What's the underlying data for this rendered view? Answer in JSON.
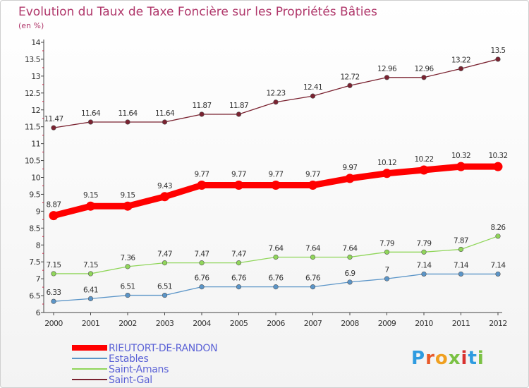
{
  "chart_data": {
    "type": "line",
    "title": "Evolution du Taux de Taxe Foncière sur les Propriétés Bâties",
    "subtitle": "(en %)",
    "xlabel": "",
    "ylabel": "",
    "x": [
      "2000",
      "2001",
      "2002",
      "2003",
      "2004",
      "2005",
      "2006",
      "2007",
      "2008",
      "2009",
      "2010",
      "2011",
      "2012"
    ],
    "ylim": [
      6,
      14
    ],
    "yticks": [
      "6",
      "6.5",
      "7",
      "7.5",
      "8",
      "8.5",
      "9",
      "9.5",
      "10",
      "10.5",
      "11",
      "11.5",
      "12",
      "12.5",
      "13",
      "13.5",
      "14"
    ],
    "grid": false,
    "legend_position": "bottom-left",
    "series": [
      {
        "name": "RIEUTORT-DE-RANDON",
        "color": "#ff0000",
        "emphasis": "bold",
        "values": [
          8.87,
          9.15,
          9.15,
          9.43,
          9.77,
          9.77,
          9.77,
          9.77,
          9.97,
          10.12,
          10.22,
          10.32,
          10.32
        ],
        "labels": [
          "8.87",
          "9.15",
          "9.15",
          "9.43",
          "9.77",
          "9.77",
          "9.77",
          "9.77",
          "9.97",
          "10.12",
          "10.22",
          "10.32",
          "10.32"
        ]
      },
      {
        "name": "Estables",
        "color": "#5b95c8",
        "emphasis": "normal",
        "values": [
          6.33,
          6.41,
          6.51,
          6.51,
          6.76,
          6.76,
          6.76,
          6.76,
          6.9,
          7,
          7.14,
          7.14,
          7.14
        ],
        "labels": [
          "6.33",
          "6.41",
          "6.51",
          "6.51",
          "6.76",
          "6.76",
          "6.76",
          "6.76",
          "6.9",
          "7",
          "7.14",
          "7.14",
          "7.14"
        ]
      },
      {
        "name": "Saint-Amans",
        "color": "#90d65a",
        "emphasis": "normal",
        "values": [
          7.15,
          7.15,
          7.36,
          7.47,
          7.47,
          7.47,
          7.64,
          7.64,
          7.64,
          7.79,
          7.79,
          7.87,
          8.26
        ],
        "labels": [
          "7.15",
          "7.15",
          "7.36",
          "7.47",
          "7.47",
          "7.47",
          "7.64",
          "7.64",
          "7.64",
          "7.79",
          "7.79",
          "7.87",
          "8.26"
        ]
      },
      {
        "name": "Saint-Gal",
        "color": "#7a2230",
        "emphasis": "normal",
        "values": [
          11.47,
          11.64,
          11.64,
          11.64,
          11.87,
          11.87,
          12.23,
          12.41,
          12.72,
          12.96,
          12.96,
          13.22,
          13.5
        ],
        "labels": [
          "11.47",
          "11.64",
          "11.64",
          "11.64",
          "11.87",
          "11.87",
          "12.23",
          "12.41",
          "12.72",
          "12.96",
          "12.96",
          "13.22",
          "13.5"
        ]
      }
    ]
  },
  "logo": {
    "text": "Proxiti",
    "colors": [
      "#2e9be0",
      "#e85a2a",
      "#f0a020",
      "#7ac143",
      "#d8312f",
      "#2e9be0",
      "#7ac143"
    ]
  }
}
